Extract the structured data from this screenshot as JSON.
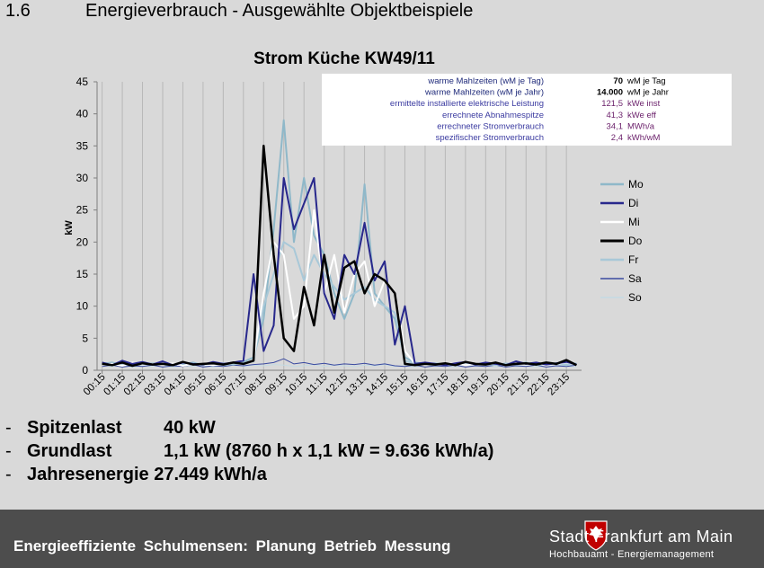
{
  "slide": {
    "number": "1.6",
    "title": "Energieverbrauch - Ausgewählte Objektbeispiele"
  },
  "info_table": [
    {
      "label": "warme Mahlzeiten (wM je Tag)",
      "value": "70",
      "unit": "wM je Tag"
    },
    {
      "label": "warme Mahlzeiten (wM je Jahr)",
      "value": "14.000",
      "unit": "wM je Jahr"
    },
    {
      "label": "ermittelte installierte elektrische Leistung",
      "value": "121,5",
      "unit": "kWe inst"
    },
    {
      "label": "errechnete Abnahmespitze",
      "value": "41,3",
      "unit": "kWe eff"
    },
    {
      "label": "errechneter Stromverbrauch",
      "value": "34,1",
      "unit": "MWh/a"
    },
    {
      "label": "spezifischer Stromverbrauch",
      "value": "2,4",
      "unit": "kWh/wM"
    }
  ],
  "summary": [
    {
      "dash": "-",
      "label": "Spitzenlast",
      "value": "40 kW"
    },
    {
      "dash": "-",
      "label": "Grundlast",
      "value": "1,1 kW (8760 h x 1,1 kW = 9.636 kWh/a)"
    },
    {
      "dash": "-",
      "label": "Jahresenergie",
      "value": "27.449 kWh/a"
    }
  ],
  "footer": {
    "text": "Energieeffiziente Schulmensen: Planung Betrieb Messung",
    "logo_line1": "Stadt Frankfurt am Main",
    "logo_line2": "Hochbauamt - Energiemanagement"
  },
  "chart_data": {
    "type": "line",
    "title": "Strom Küche KW49/11",
    "ylabel": "kW",
    "xlabel": "",
    "ylim": [
      0,
      45
    ],
    "yticks": [
      0,
      5,
      10,
      15,
      20,
      25,
      30,
      35,
      40,
      45
    ],
    "grid": "vertical",
    "legend_position": "right",
    "x": [
      "00:15",
      "00:45",
      "01:15",
      "01:45",
      "02:15",
      "02:45",
      "03:15",
      "03:45",
      "04:15",
      "04:45",
      "05:15",
      "05:45",
      "06:15",
      "06:45",
      "07:15",
      "07:45",
      "08:15",
      "08:45",
      "09:15",
      "09:45",
      "10:15",
      "10:45",
      "11:15",
      "11:45",
      "12:15",
      "12:45",
      "13:15",
      "13:45",
      "14:15",
      "14:45",
      "15:15",
      "15:45",
      "16:15",
      "16:45",
      "17:15",
      "17:45",
      "18:15",
      "18:45",
      "19:15",
      "19:45",
      "20:15",
      "20:45",
      "21:15",
      "21:45",
      "22:15",
      "22:45",
      "23:15",
      "23:45"
    ],
    "xtick_labels": [
      "00:15",
      "01:15",
      "02:15",
      "03:15",
      "04:15",
      "05:15",
      "06:15",
      "07:15",
      "08:15",
      "09:15",
      "10:15",
      "11:15",
      "12:15",
      "13:15",
      "14:15",
      "15:15",
      "16:15",
      "17:15",
      "18:15",
      "19:15",
      "20:15",
      "21:15",
      "22:15",
      "23:15"
    ],
    "series": [
      {
        "name": "Mo",
        "color": "#8fb8c9",
        "width": 2,
        "values": [
          1.0,
          1.2,
          0.8,
          1.0,
          0.9,
          1.1,
          0.8,
          1.0,
          0.9,
          1.2,
          0.8,
          1.0,
          1.1,
          0.9,
          1.3,
          2.0,
          8.0,
          22.0,
          39.0,
          20.0,
          30.0,
          21.0,
          18.0,
          12.0,
          8.0,
          12.0,
          29.0,
          12.0,
          10.0,
          8.0,
          2.0,
          1.2,
          1.0,
          1.1,
          0.9,
          1.0,
          1.2,
          0.9,
          1.0,
          1.1,
          0.9,
          1.0,
          1.2,
          0.8,
          1.0,
          1.1,
          0.9,
          1.0
        ]
      },
      {
        "name": "Di",
        "color": "#28288c",
        "width": 2,
        "values": [
          1.2,
          0.8,
          1.5,
          1.0,
          1.3,
          0.9,
          1.4,
          0.8,
          1.2,
          1.0,
          0.9,
          1.3,
          1.0,
          1.2,
          1.5,
          15.0,
          3.0,
          7.0,
          30.0,
          22.0,
          26.0,
          30.0,
          12.0,
          8.0,
          18.0,
          15.0,
          23.0,
          14.0,
          17.0,
          4.0,
          10.0,
          1.0,
          1.2,
          1.0,
          0.8,
          1.1,
          1.3,
          0.9,
          1.2,
          1.0,
          0.8,
          1.4,
          1.0,
          1.2,
          0.9,
          1.1,
          1.3,
          0.9
        ]
      },
      {
        "name": "Mi",
        "color": "#ffffff",
        "width": 2,
        "values": [
          0.8,
          1.0,
          0.7,
          1.2,
          0.9,
          1.0,
          0.8,
          1.1,
          0.7,
          1.0,
          0.9,
          0.8,
          1.0,
          1.2,
          1.0,
          1.5,
          12.0,
          20.0,
          18.0,
          8.0,
          10.0,
          25.0,
          12.0,
          18.0,
          9.0,
          15.0,
          17.0,
          10.0,
          14.0,
          12.0,
          3.0,
          1.0,
          0.8,
          1.0,
          0.9,
          1.1,
          0.8,
          1.0,
          0.9,
          1.2,
          0.8,
          1.0,
          0.9,
          1.1,
          0.8,
          1.0,
          1.2,
          0.9
        ]
      },
      {
        "name": "Do",
        "color": "#000000",
        "width": 2.5,
        "values": [
          1.0,
          0.8,
          1.2,
          0.7,
          1.1,
          0.9,
          1.0,
          0.8,
          1.3,
          0.9,
          1.0,
          1.1,
          0.9,
          1.2,
          1.0,
          1.5,
          35.0,
          18.0,
          5.0,
          3.0,
          13.0,
          7.0,
          18.0,
          9.0,
          16.0,
          17.0,
          12.0,
          15.0,
          14.0,
          12.0,
          1.0,
          0.8,
          1.0,
          0.9,
          1.1,
          0.8,
          1.3,
          1.0,
          0.9,
          1.2,
          0.8,
          1.0,
          1.1,
          0.9,
          1.2,
          1.0,
          1.6,
          0.8
        ]
      },
      {
        "name": "Fr",
        "color": "#a8c8d8",
        "width": 2,
        "values": [
          0.9,
          1.1,
          0.8,
          1.0,
          1.2,
          0.9,
          1.0,
          0.8,
          1.1,
          1.0,
          0.9,
          1.2,
          0.8,
          1.0,
          1.1,
          1.4,
          10.0,
          15.0,
          20.0,
          19.0,
          14.0,
          18.0,
          15.0,
          13.0,
          11.0,
          12.0,
          13.0,
          11.0,
          10.0,
          9.0,
          1.5,
          1.0,
          0.9,
          1.1,
          0.8,
          1.0,
          1.2,
          0.9,
          1.0,
          0.8,
          1.1,
          0.9,
          1.0,
          1.2,
          0.9,
          1.0,
          0.8,
          1.1
        ]
      },
      {
        "name": "Sa",
        "color": "#3a4aa0",
        "width": 1,
        "values": [
          0.6,
          0.8,
          0.5,
          0.7,
          0.6,
          0.8,
          0.5,
          0.7,
          0.6,
          0.9,
          0.5,
          0.7,
          0.6,
          0.8,
          0.7,
          0.9,
          1.0,
          1.2,
          1.8,
          1.0,
          1.2,
          0.9,
          1.1,
          0.8,
          1.0,
          0.9,
          1.1,
          0.8,
          1.0,
          0.7,
          0.6,
          0.8,
          0.5,
          0.7,
          0.6,
          0.8,
          0.5,
          0.7,
          0.6,
          0.8,
          0.5,
          0.7,
          0.6,
          0.8,
          0.5,
          0.7,
          0.6,
          0.8
        ]
      },
      {
        "name": "So",
        "color": "#c4dbe4",
        "width": 1,
        "values": [
          0.8,
          0.6,
          0.9,
          0.5,
          0.7,
          0.6,
          0.8,
          0.5,
          0.7,
          0.6,
          0.8,
          0.5,
          0.7,
          0.9,
          0.6,
          0.8,
          0.7,
          0.9,
          0.8,
          0.6,
          0.7,
          0.9,
          0.6,
          0.8,
          0.7,
          0.6,
          0.8,
          0.7,
          0.9,
          0.6,
          0.7,
          0.5,
          0.8,
          0.6,
          0.7,
          0.5,
          0.8,
          0.6,
          0.7,
          0.5,
          0.8,
          0.6,
          0.7,
          0.5,
          0.8,
          0.6,
          0.7,
          0.5
        ]
      }
    ]
  }
}
